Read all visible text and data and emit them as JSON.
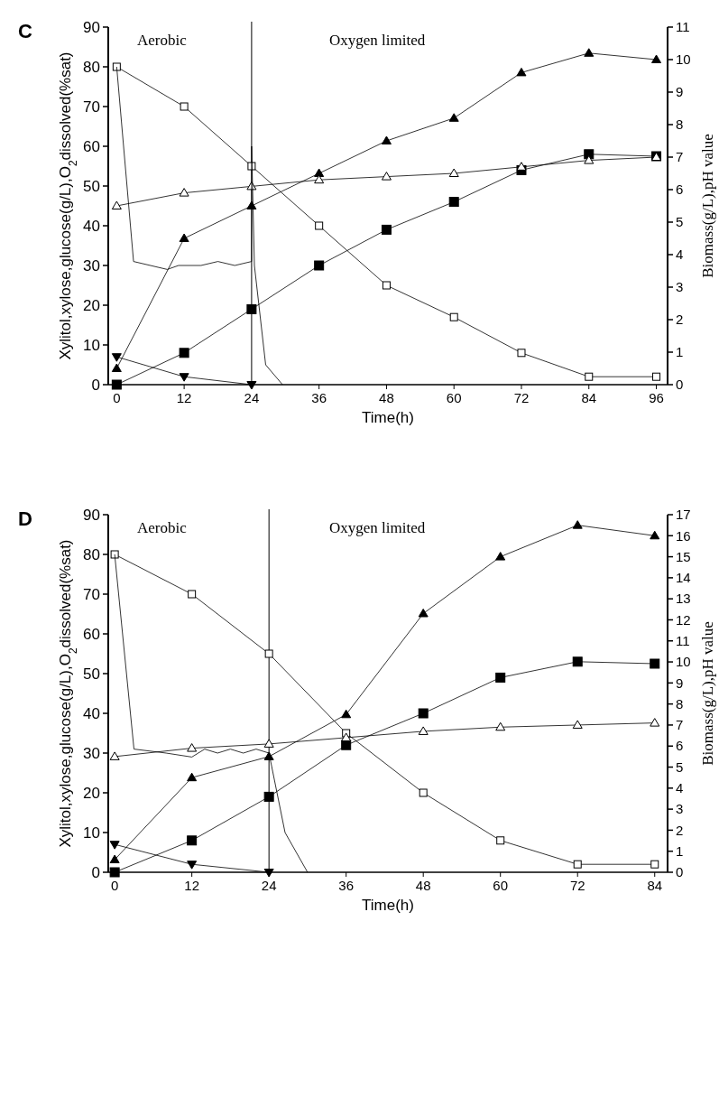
{
  "chart_data": [
    {
      "type": "line",
      "title": "C",
      "xlabel": "Time(h)",
      "ylabel": "Xylitol,xylose,glucose(g/L),O$_{2}$dissolved(%sat)",
      "y2label": "Biomass(g/L),pH value",
      "xlim": [
        -1.5,
        98
      ],
      "xticks": [
        0,
        12,
        24,
        36,
        48,
        60,
        72,
        84,
        96
      ],
      "ylim": [
        0,
        90
      ],
      "yticks": [
        0,
        10,
        20,
        30,
        40,
        50,
        60,
        70,
        80,
        90
      ],
      "y2lim": [
        0,
        11
      ],
      "y2ticks": [
        0,
        1,
        2,
        3,
        4,
        5,
        6,
        7,
        8,
        9,
        10,
        11
      ],
      "annotations": [
        "Aerobic",
        "Oxygen limited"
      ],
      "ref_lines": [
        {
          "axis": "x",
          "value": 24,
          "color": "#000000"
        }
      ],
      "series": [
        {
          "color": "#000000",
          "marker": "square-open",
          "x": [
            0,
            12,
            24,
            36,
            48,
            60,
            72,
            84,
            96
          ],
          "values": [
            80,
            70,
            55,
            40,
            25,
            17,
            8,
            2,
            2
          ]
        },
        {
          "color": "#000000",
          "marker": "square",
          "x": [
            0,
            12,
            24,
            36,
            48,
            60,
            72,
            84,
            96
          ],
          "values": [
            0,
            8,
            19,
            30,
            39,
            46,
            54,
            58,
            57.5
          ]
        },
        {
          "color": "#000000",
          "marker": "triangle-down",
          "x": [
            0,
            12,
            24
          ],
          "values": [
            7,
            2,
            0
          ]
        },
        {
          "color": "#000000",
          "marker": "triangle",
          "axis": "y2",
          "x": [
            0,
            12,
            24,
            36,
            48,
            60,
            72,
            84,
            96
          ],
          "values": [
            0.5,
            4.5,
            5.5,
            6.5,
            7.5,
            8.2,
            9.6,
            10.2,
            10
          ]
        },
        {
          "color": "#000000",
          "marker": "triangle-open",
          "axis": "y2",
          "x": [
            0,
            12,
            24,
            36,
            48,
            60,
            72,
            84,
            96
          ],
          "values": [
            5.5,
            5.9,
            6.1,
            6.3,
            6.4,
            6.5,
            6.7,
            6.9,
            7
          ]
        },
        {
          "color": "#000000",
          "marker": "none",
          "x": [
            0,
            3,
            9,
            11,
            15,
            18,
            21,
            24,
            24,
            24.5,
            26.5,
            29.5
          ],
          "values": [
            80,
            31,
            29,
            30,
            30,
            31,
            30,
            31,
            60,
            30,
            5,
            0
          ]
        }
      ]
    },
    {
      "type": "line",
      "title": "D",
      "xlabel": "Time(h)",
      "ylabel": "Xylitol,xylose,glucose(g/L),O$_{2}$dissolved(%sat)",
      "y2label": "Biomass(g/L),pH value",
      "xlim": [
        -1,
        86
      ],
      "xticks": [
        0,
        12,
        24,
        36,
        48,
        60,
        72,
        84
      ],
      "ylim": [
        0,
        90
      ],
      "yticks": [
        0,
        10,
        20,
        30,
        40,
        50,
        60,
        70,
        80,
        90
      ],
      "y2lim": [
        0,
        17
      ],
      "y2ticks": [
        0,
        1,
        2,
        3,
        4,
        5,
        6,
        7,
        8,
        9,
        10,
        11,
        12,
        13,
        14,
        15,
        16,
        17
      ],
      "annotations": [
        "Aerobic",
        "Oxygen limited"
      ],
      "ref_lines": [
        {
          "axis": "x",
          "value": 24,
          "color": "#000000"
        }
      ],
      "series": [
        {
          "color": "#000000",
          "marker": "square-open",
          "x": [
            0,
            12,
            24,
            36,
            48,
            60,
            72,
            84
          ],
          "values": [
            80,
            70,
            55,
            35,
            20,
            8,
            2,
            2
          ]
        },
        {
          "color": "#000000",
          "marker": "square",
          "x": [
            0,
            12,
            24,
            36,
            48,
            60,
            72,
            84
          ],
          "values": [
            0,
            8,
            19,
            32,
            40,
            49,
            53,
            52.5
          ]
        },
        {
          "color": "#000000",
          "marker": "triangle-down",
          "x": [
            0,
            12,
            24
          ],
          "values": [
            7,
            2,
            0
          ]
        },
        {
          "color": "#000000",
          "marker": "triangle",
          "axis": "y2",
          "x": [
            0,
            12,
            24,
            36,
            48,
            60,
            72,
            84
          ],
          "values": [
            0.6,
            4.5,
            5.5,
            7.5,
            12.3,
            15,
            16.5,
            16
          ]
        },
        {
          "color": "#000000",
          "marker": "triangle-open",
          "axis": "y2",
          "x": [
            0,
            12,
            24,
            36,
            48,
            60,
            72,
            84
          ],
          "values": [
            5.5,
            5.9,
            6.1,
            6.4,
            6.7,
            6.9,
            7,
            7.1
          ]
        },
        {
          "color": "#000000",
          "marker": "none",
          "x": [
            0,
            3,
            8,
            12,
            14,
            16,
            18,
            20,
            22,
            24,
            26.5,
            30
          ],
          "values": [
            80,
            31,
            30,
            29,
            31,
            30,
            31,
            30,
            31,
            30,
            10,
            0
          ]
        }
      ]
    }
  ]
}
